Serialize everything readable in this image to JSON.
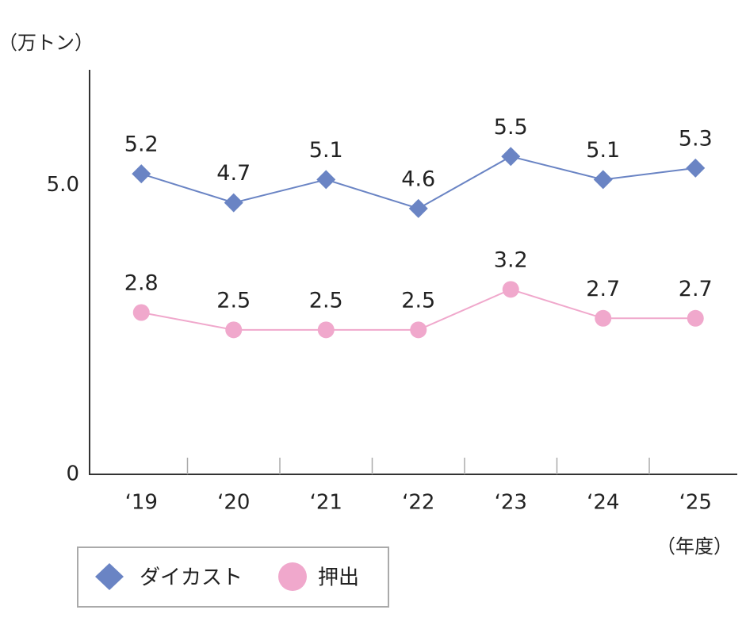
{
  "chart_data": {
    "type": "line",
    "y_unit": "（万トン）",
    "x_unit": "（年度）",
    "categories": [
      "‘19",
      "‘20",
      "‘21",
      "‘22",
      "‘23",
      "‘24",
      "‘25"
    ],
    "series": [
      {
        "name": "ダイカスト",
        "color": "#6a84c4",
        "marker": "diamond",
        "values": [
          5.2,
          4.7,
          5.1,
          4.6,
          5.5,
          5.1,
          5.3
        ]
      },
      {
        "name": "押出",
        "color": "#f0a8cc",
        "marker": "circle",
        "values": [
          2.8,
          2.5,
          2.5,
          2.5,
          3.2,
          2.7,
          2.7
        ]
      }
    ],
    "ylim": [
      0,
      7
    ],
    "yticks": [
      0,
      {
        "value": 5,
        "label": "5.0"
      }
    ]
  }
}
